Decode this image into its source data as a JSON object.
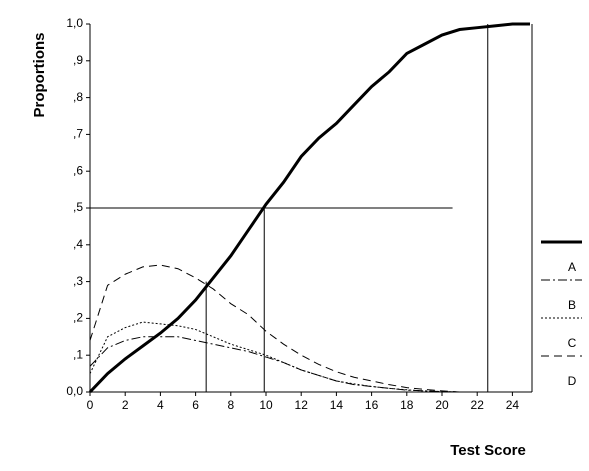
{
  "chart_data": {
    "type": "line",
    "y_label": "Proportions",
    "x_label": "Test Score",
    "x": [
      0,
      1,
      2,
      3,
      4,
      5,
      6,
      7,
      8,
      9,
      10,
      11,
      12,
      13,
      14,
      15,
      16,
      17,
      18,
      19,
      20,
      21,
      22,
      23,
      24,
      25
    ],
    "series": [
      {
        "name": "A",
        "color": "#000000",
        "style": "thick",
        "values": [
          0,
          0.05,
          0.09,
          0.125,
          0.16,
          0.2,
          0.25,
          0.31,
          0.37,
          0.44,
          0.51,
          0.57,
          0.64,
          0.69,
          0.73,
          0.78,
          0.83,
          0.87,
          0.92,
          0.945,
          0.97,
          0.985,
          0.99,
          0.995,
          1.0,
          1.0
        ]
      },
      {
        "name": "B",
        "color": "#000000",
        "style": "dashdot",
        "values": [
          0.07,
          0.12,
          0.14,
          0.15,
          0.15,
          0.15,
          0.14,
          0.13,
          0.12,
          0.11,
          0.095,
          0.08,
          0.06,
          0.045,
          0.03,
          0.02,
          0.015,
          0.01,
          0.005,
          0.003,
          0.001,
          0,
          null,
          null,
          null,
          null
        ]
      },
      {
        "name": "C",
        "color": "#000000",
        "style": "dotted",
        "values": [
          0.05,
          0.15,
          0.175,
          0.19,
          0.185,
          0.18,
          0.17,
          0.15,
          0.13,
          0.115,
          0.1,
          0.08,
          0.06,
          0.045,
          0.03,
          0.022,
          0.015,
          0.01,
          0.006,
          0.003,
          0.001,
          0,
          null,
          null,
          null,
          null
        ]
      },
      {
        "name": "D",
        "color": "#000000",
        "style": "dashed",
        "values": [
          0.14,
          0.29,
          0.32,
          0.34,
          0.345,
          0.335,
          0.31,
          0.28,
          0.24,
          0.21,
          0.165,
          0.13,
          0.1,
          0.075,
          0.055,
          0.04,
          0.03,
          0.02,
          0.012,
          0.007,
          0.003,
          0,
          null,
          null,
          null,
          null
        ]
      }
    ],
    "xlim": [
      0,
      25
    ],
    "ylim": [
      0,
      1
    ],
    "xticks": [
      0,
      2,
      4,
      6,
      8,
      10,
      12,
      14,
      16,
      18,
      20,
      22,
      24
    ],
    "yticks": [
      {
        "value": 0,
        "label": "0,0"
      },
      {
        "value": 0.1,
        "label": ",1"
      },
      {
        "value": 0.2,
        "label": ",2"
      },
      {
        "value": 0.3,
        "label": ",3"
      },
      {
        "value": 0.4,
        "label": ",4"
      },
      {
        "value": 0.5,
        "label": ",5"
      },
      {
        "value": 0.6,
        "label": ",6"
      },
      {
        "value": 0.7,
        "label": ",7"
      },
      {
        "value": 0.8,
        "label": ",8"
      },
      {
        "value": 0.9,
        "label": ",9"
      },
      {
        "value": 1,
        "label": "1,0"
      }
    ],
    "hlines": [
      {
        "y": 0.5,
        "x_end": 20.6
      }
    ],
    "vlines": [
      {
        "x": 6.6,
        "y_end": 0.3
      },
      {
        "x": 9.9,
        "y_end": 0.5
      },
      {
        "x": 22.6,
        "y_end": 1.0
      }
    ]
  }
}
